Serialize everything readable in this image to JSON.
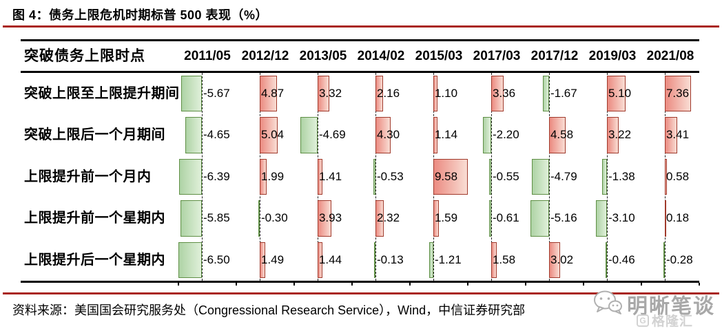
{
  "chart_data": {
    "type": "table",
    "title": "图 4：债务上限危机时期标普 500 表现（%）",
    "corner_header": "突破债务上限时点",
    "columns": [
      "2011/05",
      "2012/12",
      "2013/05",
      "2014/02",
      "2015/03",
      "2017/03",
      "2017/12",
      "2019/03",
      "2021/08"
    ],
    "rows": [
      {
        "label": "突破上限至上限提升期间",
        "values": [
          -5.67,
          4.87,
          3.32,
          2.16,
          1.1,
          3.36,
          -1.67,
          5.1,
          7.36
        ]
      },
      {
        "label": "突破上限后一个月期间",
        "values": [
          -4.65,
          5.04,
          -4.69,
          4.3,
          1.14,
          -2.2,
          4.58,
          3.22,
          3.41
        ]
      },
      {
        "label": "上限提升前一个月内",
        "values": [
          -6.39,
          1.99,
          1.41,
          -0.53,
          9.58,
          -0.55,
          -4.79,
          -1.38,
          0.58
        ]
      },
      {
        "label": "上限提升前一个星期内",
        "values": [
          -5.85,
          -0.3,
          3.93,
          2.32,
          1.59,
          -0.61,
          -5.16,
          -3.1,
          0.18
        ]
      },
      {
        "label": "上限提升后一个星期内",
        "values": [
          -6.5,
          1.49,
          1.44,
          -0.13,
          -1.21,
          1.58,
          3.02,
          -0.46,
          -0.28
        ]
      }
    ],
    "value_range": [
      -6.5,
      9.58
    ],
    "bar_semantics": {
      "negative": "green data bar extending left of dashed axis",
      "positive": "red data bar extending right of dashed axis"
    },
    "source": "资料来源：美国国会研究服务处（Congressional Research Service），Wind，中信证券研究部"
  },
  "watermark": {
    "name": "明晰笔谈",
    "site": "格隆汇",
    "logo_letter": "G"
  },
  "colors": {
    "accent_red_rule": "#a9241a",
    "table_line": "#000000",
    "positive_bar_fill_start": "#eb8b81",
    "positive_bar_fill_end": "#f9ddd4",
    "positive_bar_border": "#a0392b",
    "negative_bar_fill_start": "#aed3a5",
    "negative_bar_fill_end": "#e0f0da",
    "negative_bar_border": "#5f8f45",
    "watermark_gray": "#a8a8a8"
  }
}
